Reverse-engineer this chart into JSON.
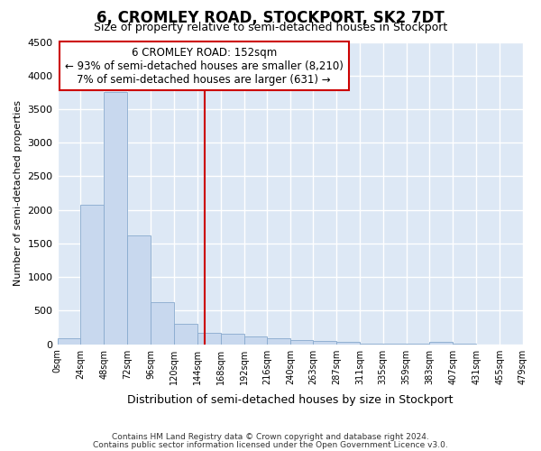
{
  "title": "6, CROMLEY ROAD, STOCKPORT, SK2 7DT",
  "subtitle": "Size of property relative to semi-detached houses in Stockport",
  "xlabel": "Distribution of semi-detached houses by size in Stockport",
  "ylabel": "Number of semi-detached properties",
  "bar_color": "#c8d8ee",
  "bar_edge_color": "#88aace",
  "background_color": "#dde8f5",
  "grid_color": "#ffffff",
  "property_size": 152,
  "vline_color": "#cc0000",
  "annotation_line1": "6 CROMLEY ROAD: 152sqm",
  "annotation_line2": "← 93% of semi-detached houses are smaller (8,210)",
  "annotation_line3": "7% of semi-detached houses are larger (631) →",
  "footer1": "Contains HM Land Registry data © Crown copyright and database right 2024.",
  "footer2": "Contains public sector information licensed under the Open Government Licence v3.0.",
  "bin_edges": [
    0,
    24,
    48,
    72,
    96,
    120,
    144,
    168,
    192,
    216,
    240,
    263,
    287,
    311,
    335,
    359,
    383,
    407,
    431,
    455,
    479
  ],
  "bin_labels": [
    "0sqm",
    "24sqm",
    "48sqm",
    "72sqm",
    "96sqm",
    "120sqm",
    "144sqm",
    "168sqm",
    "192sqm",
    "216sqm",
    "240sqm",
    "263sqm",
    "287sqm",
    "311sqm",
    "335sqm",
    "359sqm",
    "383sqm",
    "407sqm",
    "431sqm",
    "455sqm",
    "479sqm"
  ],
  "counts": [
    90,
    2080,
    3750,
    1620,
    630,
    300,
    175,
    150,
    110,
    90,
    60,
    45,
    35,
    5,
    5,
    5,
    40,
    5,
    0,
    0
  ],
  "ylim_max": 4500,
  "yticks": [
    0,
    500,
    1000,
    1500,
    2000,
    2500,
    3000,
    3500,
    4000,
    4500
  ]
}
